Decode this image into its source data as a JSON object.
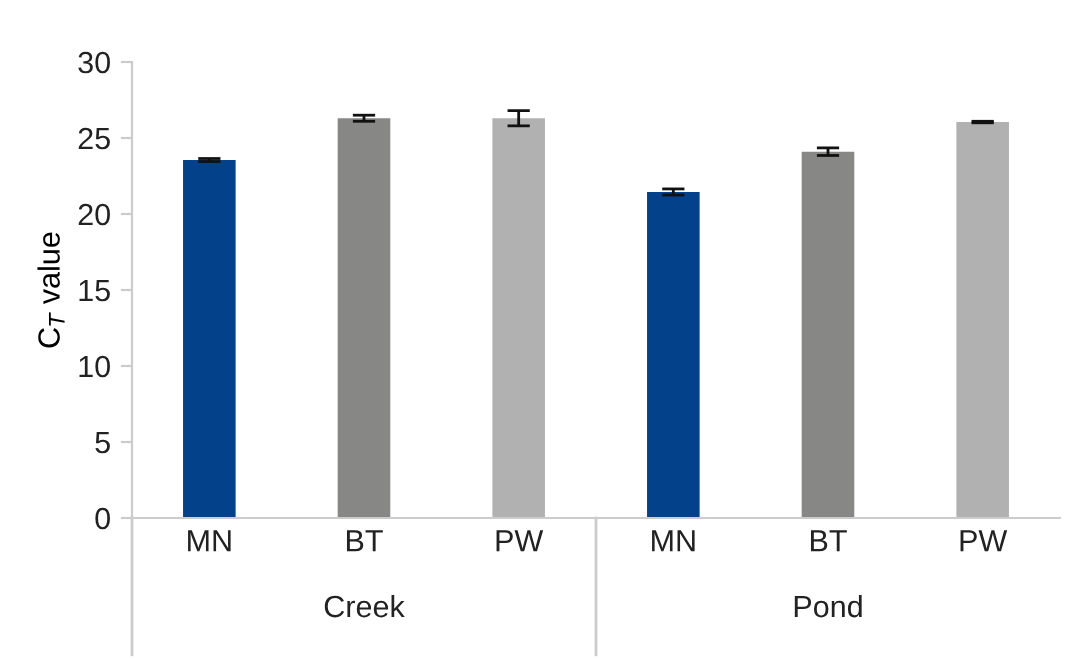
{
  "chart_data": {
    "type": "bar",
    "ylabel": "C$_{T}$ value",
    "categories": [
      "MN",
      "BT",
      "PW",
      "MN",
      "BT",
      "PW"
    ],
    "values": [
      23.55,
      26.3,
      26.3,
      21.45,
      24.1,
      26.05
    ],
    "colors": [
      "#03428a",
      "#878786",
      "#b1b1b2",
      "#03428a",
      "#878786",
      "#b1b1b2"
    ],
    "errors": [
      0.1,
      0.2,
      0.5,
      0.2,
      0.25,
      0.05
    ],
    "ylim": [
      0,
      30
    ],
    "yticks": [
      0,
      5,
      10,
      15,
      20,
      25,
      30
    ],
    "grid": false,
    "annotations": [
      "Creek",
      "Pond"
    ]
  }
}
